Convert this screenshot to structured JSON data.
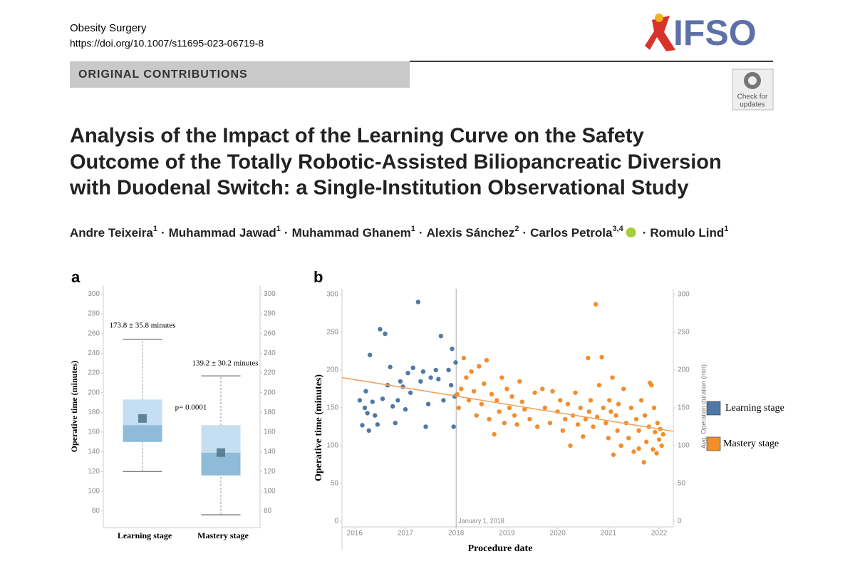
{
  "header": {
    "journal": "Obesity Surgery",
    "doi": "https://doi.org/10.1007/s11695-023-06719-8",
    "logo": "IFSO",
    "section": "ORIGINAL CONTRIBUTIONS",
    "badge": [
      "Check for",
      "updates"
    ]
  },
  "title": [
    "Analysis of the Impact of the Learning Curve on the Safety",
    "Outcome of the Totally Robotic-Assisted Biliopancreatic Diversion",
    "with Duodenal Switch: a Single-Institution Observational Study"
  ],
  "author_separator": "·",
  "authors": [
    {
      "name": "Andre Teixeira",
      "sup": "1"
    },
    {
      "name": "Muhammad Jawad",
      "sup": "1"
    },
    {
      "name": "Muhammad Ghanem",
      "sup": "1"
    },
    {
      "name": "Alexis Sánchez",
      "sup": "2"
    },
    {
      "name": "Carlos Petrola",
      "sup": "3,4"
    },
    {
      "name": "Romulo Lind",
      "sup": "1"
    }
  ],
  "chart_data": [
    {
      "type": "box",
      "panel": "a",
      "ylabel": "Operative time (minutes)",
      "categories": [
        "Learning stage",
        "Mastery stage"
      ],
      "boxes": [
        {
          "min": 120,
          "q1": 150,
          "median": 167,
          "q3": 193,
          "max": 254,
          "mean": 173.8
        },
        {
          "min": 76,
          "q1": 116,
          "median": 139,
          "q3": 167,
          "max": 217,
          "mean": 139.2
        }
      ],
      "annotations": [
        "173.8 ± 35.8 minutes",
        "139.2 ± 30.2 minutes",
        "p= 0.0001"
      ],
      "colors": {
        "upper": "#c5def2",
        "lower": "#8dbbd8",
        "mean": "#4f7388"
      },
      "ylim": [
        63,
        309
      ],
      "yticks": [
        80,
        100,
        120,
        140,
        160,
        180,
        200,
        220,
        240,
        260,
        280,
        300
      ],
      "y2lim": [
        63,
        309
      ],
      "y2ticks": [
        80,
        100,
        120,
        140,
        160,
        180,
        200,
        220,
        240,
        260,
        280,
        300
      ]
    },
    {
      "type": "scatter",
      "panel": "b",
      "xlabel": "Procedure date",
      "ylabel": "Operative time (minutes)",
      "y2label": "Avg. Operation duration (min)",
      "xlim": [
        2015.75,
        2022.28
      ],
      "xticks": [
        2016,
        2017,
        2018,
        2019,
        2020,
        2021,
        2022
      ],
      "ylim": [
        -7.5,
        307.5
      ],
      "yticks": [
        0,
        50,
        100,
        150,
        200,
        250,
        300
      ],
      "y2lim": [
        -7.5,
        307.5
      ],
      "y2ticks": [
        0,
        50,
        100,
        150,
        200,
        250,
        300
      ],
      "reference_line": {
        "x": 2018,
        "label": "January 1, 2018"
      },
      "trend": {
        "color": "#f0a35e",
        "x": [
          2015.75,
          2022.28
        ],
        "y": [
          190,
          119
        ]
      },
      "series": [
        {
          "name": "Learning stage",
          "color": "#4e79a7",
          "x": [
            2016.1,
            2016.15,
            2016.2,
            2016.22,
            2016.25,
            2016.28,
            2016.3,
            2016.35,
            2016.4,
            2016.45,
            2016.5,
            2016.55,
            2016.6,
            2016.65,
            2016.7,
            2016.75,
            2016.8,
            2016.85,
            2016.9,
            2016.95,
            2017.0,
            2017.05,
            2017.1,
            2017.15,
            2017.25,
            2017.3,
            2017.35,
            2017.4,
            2017.45,
            2017.5,
            2017.6,
            2017.65,
            2017.7,
            2017.75,
            2017.85,
            2017.9,
            2017.92,
            2017.95,
            2017.97,
            2017.99
          ],
          "values": [
            160,
            127,
            150,
            172,
            143,
            120,
            220,
            158,
            140,
            128,
            254,
            162,
            248,
            180,
            204,
            152,
            130,
            160,
            185,
            178,
            148,
            196,
            170,
            203,
            290,
            185,
            198,
            125,
            155,
            190,
            200,
            188,
            245,
            160,
            200,
            180,
            228,
            125,
            165,
            210
          ]
        },
        {
          "name": "Mastery stage",
          "color": "#f28e2b",
          "x": [
            2018.02,
            2018.05,
            2018.1,
            2018.15,
            2018.2,
            2018.25,
            2018.3,
            2018.35,
            2018.4,
            2018.45,
            2018.5,
            2018.55,
            2018.6,
            2018.65,
            2018.7,
            2018.75,
            2018.8,
            2018.85,
            2018.9,
            2018.95,
            2019.0,
            2019.05,
            2019.1,
            2019.15,
            2019.2,
            2019.25,
            2019.3,
            2019.35,
            2019.45,
            2019.55,
            2019.6,
            2019.7,
            2019.75,
            2019.85,
            2019.9,
            2020.0,
            2020.05,
            2020.1,
            2020.15,
            2020.2,
            2020.25,
            2020.3,
            2020.35,
            2020.4,
            2020.45,
            2020.5,
            2020.55,
            2020.6,
            2020.62,
            2020.65,
            2020.7,
            2020.75,
            2020.78,
            2020.82,
            2020.87,
            2020.9,
            2020.95,
            2021.0,
            2021.02,
            2021.05,
            2021.08,
            2021.1,
            2021.15,
            2021.18,
            2021.2,
            2021.25,
            2021.3,
            2021.35,
            2021.4,
            2021.45,
            2021.5,
            2021.55,
            2021.6,
            2021.65,
            2021.7,
            2021.72,
            2021.75,
            2021.8,
            2021.85,
            2021.88,
            2021.9,
            2021.92,
            2021.95,
            2021.97,
            2022.0,
            2022.02,
            2022.05,
            2022.08,
            2021.6,
            2021.82
          ],
          "values": [
            168,
            150,
            175,
            216,
            190,
            160,
            198,
            172,
            140,
            205,
            155,
            182,
            213,
            135,
            168,
            115,
            160,
            145,
            190,
            130,
            175,
            150,
            165,
            140,
            128,
            185,
            158,
            148,
            135,
            170,
            125,
            175,
            150,
            130,
            172,
            145,
            160,
            120,
            135,
            155,
            100,
            140,
            170,
            128,
            150,
            112,
            135,
            216,
            145,
            160,
            125,
            287,
            138,
            180,
            217,
            150,
            130,
            110,
            160,
            145,
            190,
            88,
            140,
            120,
            155,
            100,
            175,
            130,
            110,
            150,
            92,
            135,
            120,
            160,
            78,
            140,
            105,
            125,
            180,
            95,
            150,
            118,
            90,
            130,
            108,
            122,
            100,
            115,
            96,
            183
          ]
        }
      ]
    }
  ]
}
